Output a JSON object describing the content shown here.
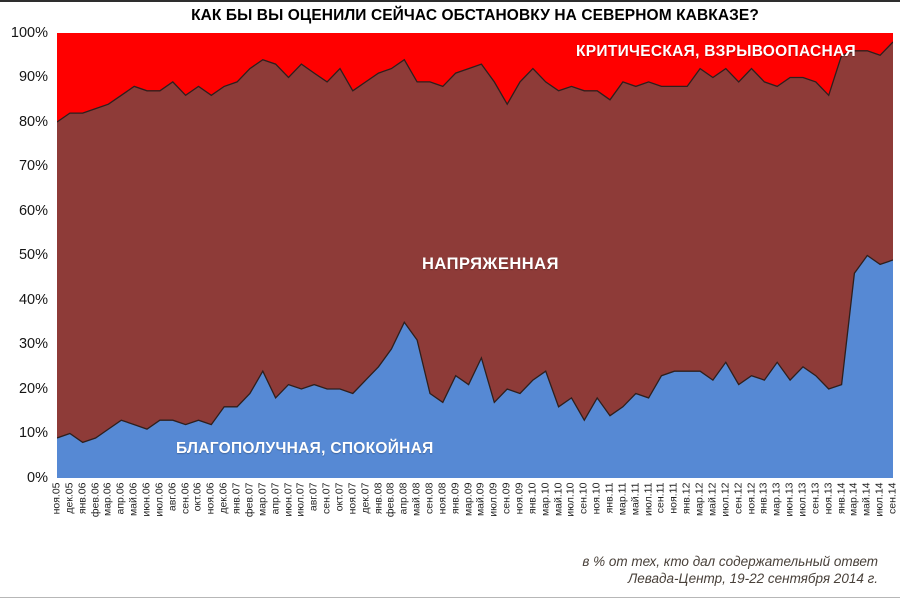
{
  "title": "КАК БЫ ВЫ ОЦЕНИЛИ СЕЙЧАС ОБСТАНОВКУ НА СЕВЕРНОМ КАВКАЗЕ?",
  "footer": {
    "line1": "в % от тех, кто дал содержательный ответ",
    "line2": "Левада-Центр, 19-22 сентября 2014 г."
  },
  "y_axis": {
    "tick_labels": [
      "100%",
      "90%",
      "80%",
      "70%",
      "60%",
      "50%",
      "40%",
      "30%",
      "20%",
      "10%",
      "0%"
    ]
  },
  "chart_data": {
    "type": "area",
    "stacked": true,
    "unit": "%",
    "ylim": [
      0,
      100
    ],
    "grid": false,
    "legend_position": "labels-inside-areas",
    "outline_color": "#2E1F1D",
    "categories": [
      "ноя.05",
      "дек.05",
      "янв.06",
      "фев.06",
      "мар.06",
      "апр.06",
      "май.06",
      "июн.06",
      "июл.06",
      "авг.06",
      "сен.06",
      "окт.06",
      "ноя.06",
      "дек.06",
      "янв.07",
      "фев.07",
      "мар.07",
      "апр.07",
      "июн.07",
      "июл.07",
      "авг.07",
      "сен.07",
      "окт.07",
      "ноя.07",
      "дек.07",
      "янв.08",
      "фев.08",
      "апр.08",
      "май.08",
      "сен.08",
      "ноя.08",
      "янв.09",
      "мар.09",
      "май.09",
      "июл.09",
      "сен.09",
      "ноя.09",
      "янв.10",
      "мар.10",
      "май.10",
      "июл.10",
      "сен.10",
      "ноя.10",
      "янв.11",
      "мар.11",
      "май.11",
      "июл.11",
      "сен.11",
      "ноя.11",
      "янв.12",
      "мар.12",
      "май.12",
      "июл.12",
      "сен.12",
      "ноя.12",
      "янв.13",
      "мар.13",
      "июн.13",
      "июл.13",
      "сен.13",
      "ноя.13",
      "янв.14",
      "мар.14",
      "май.14",
      "июл.14",
      "сен.14"
    ],
    "series": [
      {
        "name": "БЛАГОПОЛУЧНАЯ, СПОКОЙНАЯ",
        "color": "#5689D4",
        "values": [
          9,
          10,
          8,
          9,
          11,
          13,
          12,
          11,
          13,
          13,
          12,
          13,
          12,
          16,
          16,
          19,
          24,
          18,
          21,
          20,
          21,
          20,
          20,
          19,
          22,
          25,
          29,
          35,
          31,
          19,
          17,
          23,
          21,
          27,
          17,
          20,
          19,
          22,
          24,
          16,
          18,
          13,
          18,
          14,
          16,
          19,
          18,
          23,
          24,
          24,
          24,
          22,
          26,
          21,
          23,
          22,
          26,
          22,
          25,
          23,
          20,
          21,
          46,
          50,
          48,
          49
        ]
      },
      {
        "name": "НАПРЯЖЕННАЯ",
        "color": "#8E3B38",
        "values": [
          71,
          72,
          74,
          74,
          73,
          73,
          76,
          76,
          74,
          76,
          74,
          75,
          74,
          72,
          73,
          73,
          70,
          75,
          69,
          73,
          70,
          69,
          72,
          68,
          67,
          66,
          63,
          59,
          58,
          70,
          71,
          68,
          71,
          66,
          72,
          64,
          70,
          70,
          65,
          71,
          70,
          74,
          69,
          71,
          73,
          69,
          71,
          65,
          64,
          64,
          68,
          68,
          66,
          68,
          69,
          67,
          62,
          68,
          65,
          66,
          66,
          74,
          50,
          46,
          47,
          49
        ]
      },
      {
        "name": "КРИТИЧЕСКАЯ, ВЗРЫВООПАСНАЯ",
        "color": "#FF0000",
        "values": [
          20,
          18,
          18,
          17,
          16,
          14,
          12,
          13,
          13,
          11,
          14,
          12,
          14,
          12,
          11,
          8,
          6,
          7,
          10,
          7,
          9,
          11,
          8,
          13,
          11,
          9,
          8,
          6,
          11,
          11,
          12,
          9,
          8,
          7,
          11,
          16,
          11,
          8,
          11,
          13,
          12,
          13,
          13,
          15,
          11,
          12,
          11,
          12,
          12,
          12,
          8,
          10,
          8,
          11,
          8,
          11,
          12,
          10,
          10,
          11,
          14,
          5,
          4,
          4,
          5,
          2
        ]
      }
    ]
  }
}
